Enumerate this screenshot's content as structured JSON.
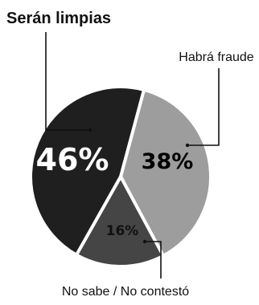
{
  "chart_data": {
    "type": "pie",
    "slices": [
      {
        "label": "Habrá fraude",
        "value": 38,
        "value_label": "38%",
        "color": "#9d9d9d",
        "text_color": "#000000"
      },
      {
        "label": "No sabe / No contestó",
        "value": 16,
        "value_label": "16%",
        "color": "#454545",
        "text_color": "#111111"
      },
      {
        "label": "Serán limpias",
        "value": 46,
        "value_label": "46%",
        "color": "#1f1f1f",
        "text_color": "#ffffff"
      }
    ]
  }
}
